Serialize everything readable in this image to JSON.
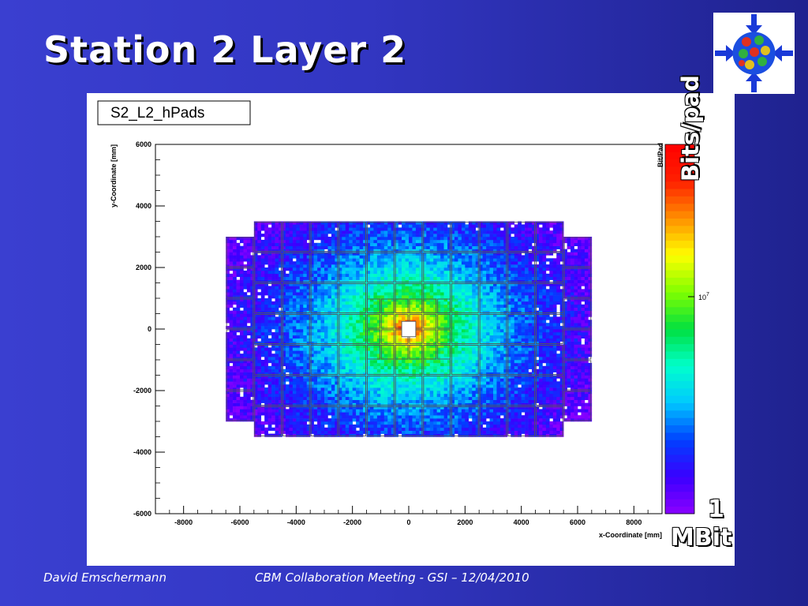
{
  "slide": {
    "title": "Station 2 Layer 2",
    "footer_left": "David Emschermann",
    "footer_center": "CBM Collaboration Meeting - GSI – 12/04/2010"
  },
  "colorbar_annotation": {
    "top_label": "Bits/pad",
    "bottom_line1": "1",
    "bottom_line2": "MBit"
  },
  "logo": {
    "icon": "cbm-logo-icon"
  },
  "chart_data": {
    "type": "heatmap",
    "title": "S2_L2_hPads",
    "xlabel": "x-Coordinate [mm]",
    "ylabel": "y-Coordinate [mm]",
    "zlabel": "Bit/Pad",
    "xlim": [
      -9000,
      9000
    ],
    "ylim": [
      -6000,
      6000
    ],
    "x_ticks": [
      -8000,
      -6000,
      -4000,
      -2000,
      0,
      2000,
      4000,
      6000,
      8000
    ],
    "y_ticks": [
      -6000,
      -4000,
      -2000,
      0,
      2000,
      4000,
      6000
    ],
    "z_tick_label": "10",
    "z_tick_exponent": "7",
    "z_scale": "log",
    "colormap": [
      "#8b00ff",
      "#3a00ff",
      "#0040ff",
      "#00c8ff",
      "#00ffcc",
      "#00e040",
      "#80ff00",
      "#ffff00",
      "#ff9000",
      "#ff2000",
      "#ff0000"
    ],
    "detector": {
      "outer_x": [
        -5500,
        5500
      ],
      "outer_y": [
        -3500,
        3500
      ],
      "side_x": [
        -6500,
        6500
      ],
      "side_y": [
        -3000,
        3000
      ],
      "hole": [
        -250,
        250,
        -250,
        250
      ],
      "module_size_mm": 1000,
      "fine_region": [
        -1500,
        1500,
        -1000,
        1000
      ]
    }
  }
}
